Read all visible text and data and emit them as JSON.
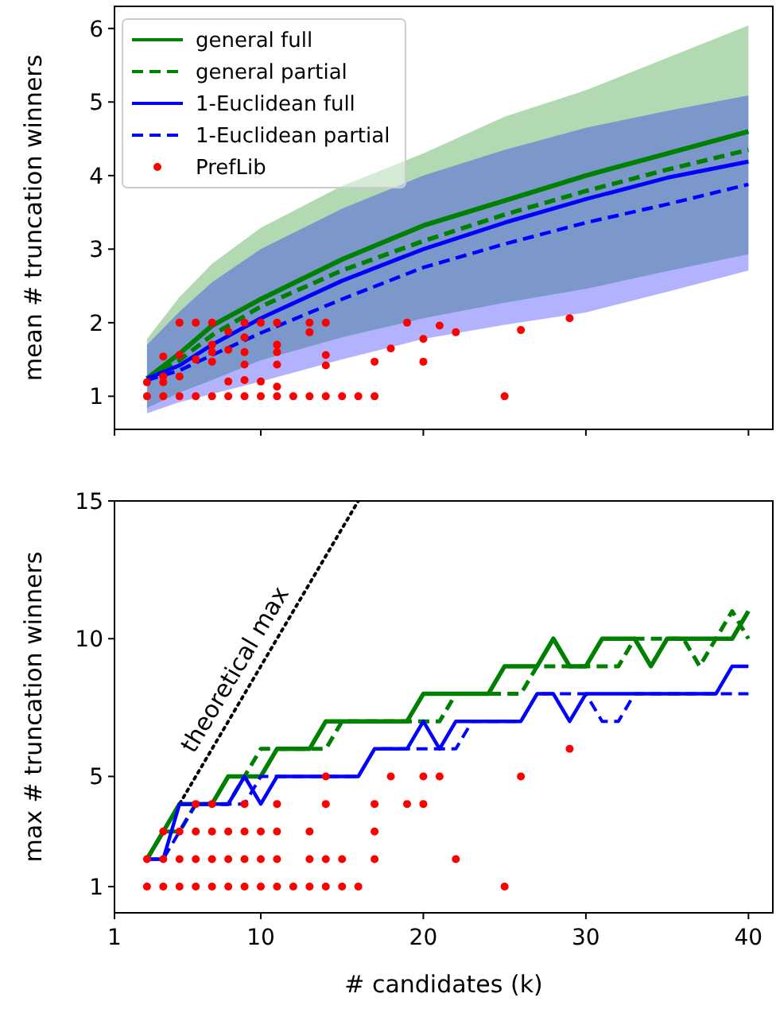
{
  "chart_data": [
    {
      "type": "line",
      "ylabel": "mean # truncation winners",
      "xlim": [
        1,
        41.5
      ],
      "xticks": [
        1,
        10,
        20,
        30,
        40
      ],
      "ylim": [
        0.55,
        6.3
      ],
      "yticks": [
        1,
        2,
        3,
        4,
        5,
        6
      ],
      "tick_labels": "y",
      "legend": "top left",
      "series": [
        {
          "name": "general full",
          "color": "#008000",
          "line_style": "solid",
          "marker": "none",
          "x": [
            3,
            5,
            7,
            10,
            15,
            20,
            25,
            30,
            35,
            40
          ],
          "values": [
            1.24,
            1.58,
            1.96,
            2.32,
            2.86,
            3.32,
            3.66,
            4.0,
            4.3,
            4.6
          ],
          "lower": [
            0.84,
            1.05,
            1.22,
            1.49,
            1.8,
            2.06,
            2.27,
            2.46,
            2.7,
            2.93
          ],
          "upper": [
            1.78,
            2.35,
            2.8,
            3.29,
            3.86,
            4.3,
            4.8,
            5.16,
            5.6,
            6.04
          ]
        },
        {
          "name": "general partial",
          "color": "#008000",
          "line_style": "dashed",
          "marker": "none",
          "x": [
            3,
            5,
            7,
            10,
            15,
            20,
            25,
            30,
            35,
            40
          ],
          "values": [
            1.24,
            1.49,
            1.83,
            2.22,
            2.71,
            3.11,
            3.47,
            3.79,
            4.08,
            4.35
          ]
        },
        {
          "name": "1-Euclidean full",
          "color": "#0000ff",
          "line_style": "solid",
          "marker": "none",
          "x": [
            3,
            5,
            7,
            10,
            15,
            20,
            25,
            30,
            35,
            40
          ],
          "values": [
            1.24,
            1.42,
            1.7,
            2.06,
            2.57,
            3.0,
            3.36,
            3.68,
            3.97,
            4.19
          ],
          "lower": [
            0.77,
            0.92,
            1.03,
            1.2,
            1.5,
            1.78,
            1.97,
            2.14,
            2.42,
            2.71
          ],
          "upper": [
            1.7,
            2.15,
            2.55,
            3.0,
            3.55,
            4.0,
            4.35,
            4.65,
            4.88,
            5.09
          ]
        },
        {
          "name": "1-Euclidean partial",
          "color": "#0000ff",
          "line_style": "dashed",
          "marker": "none",
          "x": [
            3,
            5,
            7,
            10,
            15,
            20,
            25,
            30,
            35,
            40
          ],
          "values": [
            1.22,
            1.35,
            1.56,
            1.86,
            2.32,
            2.75,
            3.07,
            3.36,
            3.61,
            3.88
          ]
        },
        {
          "name": "PrefLib",
          "type": "scatter",
          "color": "#ff0000",
          "marker": "circle",
          "x": [
            3,
            3,
            4,
            4,
            4,
            4,
            5,
            5,
            5,
            5,
            6,
            6,
            6,
            7,
            7,
            7,
            7,
            7,
            8,
            8,
            8,
            8,
            9,
            9,
            9,
            9,
            9,
            9,
            10,
            10,
            10,
            11,
            11,
            11,
            11,
            11,
            11,
            12,
            13,
            13,
            14,
            13,
            14,
            14,
            14,
            15,
            16,
            17,
            17,
            18,
            19,
            20,
            20,
            21,
            22,
            25,
            26,
            29
          ],
          "values": [
            1.0,
            1.19,
            1.0,
            1.19,
            1.54,
            1.27,
            1.0,
            1.27,
            1.56,
            2.0,
            1.0,
            1.5,
            2.0,
            2.0,
            1.6,
            1.7,
            1.47,
            1.0,
            1.0,
            1.2,
            1.88,
            1.63,
            1.0,
            1.22,
            2.0,
            1.8,
            1.6,
            1.43,
            2.0,
            1.2,
            1.0,
            2.0,
            1.7,
            1.6,
            1.43,
            1.13,
            1.0,
            1.0,
            2.0,
            1.87,
            2.0,
            1.0,
            1.0,
            1.56,
            1.42,
            1.0,
            1.0,
            1.0,
            1.47,
            1.65,
            2.0,
            1.47,
            1.78,
            1.96,
            1.87,
            1.0,
            1.9,
            2.06
          ]
        }
      ]
    },
    {
      "type": "line",
      "ylabel": "max # truncation winners",
      "xlabel": "# candidates (k)",
      "xlim": [
        1,
        41.5
      ],
      "xticks": [
        1,
        10,
        20,
        30,
        40
      ],
      "ylim": [
        0.05,
        15
      ],
      "yticks": [
        1,
        5,
        10,
        15
      ],
      "series": [
        {
          "name": "theoretical max",
          "color": "#000000",
          "line_style": "dotted",
          "marker": "none",
          "x": [
            3,
            16
          ],
          "values": [
            2,
            15
          ]
        },
        {
          "type": "line",
          "color": "#008000",
          "line_style": "solid",
          "marker": "none",
          "x": [
            3,
            4,
            5,
            6,
            7,
            8,
            9,
            10,
            11,
            12,
            13,
            14,
            15,
            16,
            17,
            18,
            19,
            20,
            21,
            22,
            23,
            24,
            25,
            26,
            27,
            28,
            29,
            30,
            31,
            32,
            33,
            34,
            35,
            36,
            37,
            38,
            39,
            40
          ],
          "values": [
            2,
            3,
            4,
            4,
            4,
            5,
            5,
            5,
            6,
            6,
            6,
            7,
            7,
            7,
            7,
            7,
            7,
            8,
            8,
            8,
            8,
            8,
            9,
            9,
            9,
            10,
            9,
            9,
            10,
            10,
            10,
            9,
            10,
            10,
            10,
            10,
            10,
            11
          ]
        },
        {
          "type": "line",
          "color": "#008000",
          "line_style": "dashed",
          "marker": "none",
          "x": [
            3,
            4,
            5,
            6,
            7,
            8,
            9,
            10,
            11,
            12,
            13,
            14,
            15,
            16,
            17,
            18,
            19,
            20,
            21,
            22,
            23,
            24,
            25,
            26,
            27,
            28,
            29,
            30,
            31,
            32,
            33,
            34,
            35,
            36,
            37,
            38,
            39,
            40
          ],
          "values": [
            2,
            3,
            3,
            4,
            4,
            4,
            5,
            6,
            6,
            6,
            6,
            6,
            7,
            7,
            7,
            7,
            7,
            7,
            7,
            8,
            8,
            8,
            8,
            8,
            9,
            9,
            9,
            9,
            9,
            9,
            10,
            10,
            10,
            10,
            9,
            10,
            11,
            10
          ]
        },
        {
          "type": "line",
          "color": "#0000ff",
          "line_style": "solid",
          "marker": "none",
          "x": [
            3,
            4,
            5,
            6,
            7,
            8,
            9,
            10,
            11,
            12,
            13,
            14,
            15,
            16,
            17,
            18,
            19,
            20,
            21,
            22,
            23,
            24,
            25,
            26,
            27,
            28,
            29,
            30,
            31,
            32,
            33,
            34,
            35,
            36,
            37,
            38,
            39,
            40
          ],
          "values": [
            2,
            2,
            4,
            4,
            4,
            4,
            5,
            4,
            5,
            5,
            5,
            5,
            5,
            5,
            6,
            6,
            6,
            7,
            6,
            7,
            7,
            7,
            7,
            7,
            8,
            8,
            7,
            8,
            8,
            8,
            8,
            8,
            8,
            8,
            8,
            8,
            9,
            9
          ]
        },
        {
          "type": "line",
          "color": "#0000ff",
          "line_style": "dashed",
          "marker": "none",
          "x": [
            3,
            4,
            5,
            6,
            7,
            8,
            9,
            10,
            11,
            12,
            13,
            14,
            15,
            16,
            17,
            18,
            19,
            20,
            21,
            22,
            23,
            24,
            25,
            26,
            27,
            28,
            29,
            30,
            31,
            32,
            33,
            34,
            35,
            36,
            37,
            38,
            39,
            40
          ],
          "values": [
            2,
            2,
            3,
            4,
            4,
            4,
            4,
            5,
            5,
            5,
            5,
            5,
            5,
            5,
            6,
            6,
            6,
            6,
            6,
            6,
            7,
            7,
            7,
            7,
            8,
            8,
            8,
            8,
            7,
            7,
            8,
            8,
            8,
            8,
            8,
            8,
            8,
            8
          ]
        },
        {
          "type": "scatter",
          "color": "#ff0000",
          "marker": "circle",
          "x": [
            3,
            4,
            5,
            6,
            7,
            8,
            9,
            10,
            11,
            12,
            13,
            14,
            15,
            16,
            25,
            3,
            4,
            5,
            6,
            7,
            8,
            9,
            10,
            11,
            13,
            14,
            15,
            17,
            22,
            4,
            5,
            6,
            7,
            8,
            9,
            10,
            11,
            13,
            17,
            6,
            7,
            9,
            11,
            14,
            17,
            19,
            20,
            14,
            18,
            20,
            21,
            26,
            29
          ],
          "values": [
            1,
            1,
            1,
            1,
            1,
            1,
            1,
            1,
            1,
            1,
            1,
            1,
            1,
            1,
            1,
            2,
            2,
            2,
            2,
            2,
            2,
            2,
            2,
            2,
            2,
            2,
            2,
            2,
            2,
            3,
            3,
            3,
            3,
            3,
            3,
            3,
            3,
            3,
            3,
            4,
            4,
            4,
            4,
            4,
            4,
            4,
            4,
            5,
            5,
            5,
            5,
            5,
            6
          ]
        }
      ]
    }
  ]
}
